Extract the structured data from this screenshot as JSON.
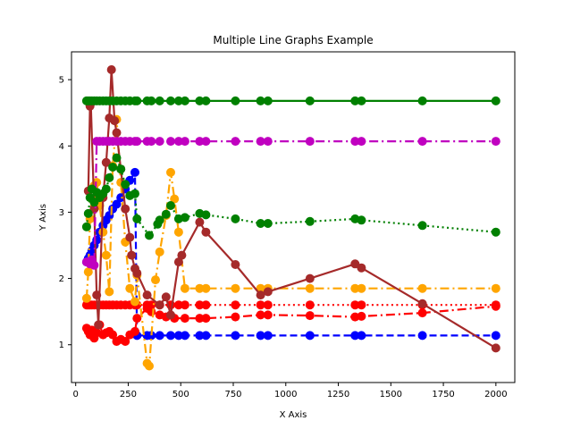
{
  "chart_data": {
    "type": "line",
    "title": "Multiple Line Graphs Example",
    "xlabel": "X Axis",
    "ylabel": "Y Axis",
    "xlim": [
      -20,
      2090
    ],
    "ylim": [
      0.43,
      5.42
    ],
    "x_ticks": [
      0,
      250,
      500,
      750,
      1000,
      1250,
      1500,
      1750,
      2000
    ],
    "x_tick_labels": [
      "0",
      "250",
      "500",
      "750",
      "1000",
      "1250",
      "1500",
      "1750",
      "2000"
    ],
    "y_ticks": [
      1,
      2,
      3,
      4,
      5
    ],
    "y_tick_labels": [
      "1",
      "2",
      "3",
      "4",
      "5"
    ],
    "grid": false,
    "legend": "none",
    "series": [
      {
        "color": "#0000ff",
        "line_style": "dashed",
        "points": [
          [
            52,
            2.25
          ],
          [
            60,
            2.3
          ],
          [
            68,
            2.35
          ],
          [
            77,
            2.42
          ],
          [
            88,
            2.5
          ],
          [
            100,
            2.58
          ],
          [
            114,
            2.7
          ],
          [
            130,
            2.8
          ],
          [
            145,
            2.88
          ],
          [
            160,
            2.95
          ],
          [
            176,
            3.05
          ],
          [
            195,
            3.12
          ],
          [
            215,
            3.22
          ],
          [
            236,
            3.35
          ],
          [
            258,
            3.48
          ],
          [
            282,
            3.6
          ],
          [
            292,
            1.14
          ],
          [
            340,
            1.14
          ],
          [
            360,
            1.14
          ],
          [
            400,
            1.14
          ],
          [
            452,
            1.14
          ],
          [
            490,
            1.14
          ],
          [
            520,
            1.14
          ],
          [
            590,
            1.14
          ],
          [
            620,
            1.14
          ],
          [
            760,
            1.14
          ],
          [
            880,
            1.14
          ],
          [
            915,
            1.14
          ],
          [
            1115,
            1.14
          ],
          [
            1330,
            1.14
          ],
          [
            1360,
            1.14
          ],
          [
            1650,
            1.14
          ],
          [
            2000,
            1.14
          ]
        ]
      },
      {
        "color": "#ff0000",
        "line_style": "dashdot",
        "points": [
          [
            52,
            1.25
          ],
          [
            60,
            1.2
          ],
          [
            68,
            1.15
          ],
          [
            77,
            1.22
          ],
          [
            88,
            1.1
          ],
          [
            100,
            1.18
          ],
          [
            114,
            1.3
          ],
          [
            130,
            1.15
          ],
          [
            145,
            1.18
          ],
          [
            160,
            1.2
          ],
          [
            176,
            1.15
          ],
          [
            195,
            1.05
          ],
          [
            215,
            1.08
          ],
          [
            236,
            1.05
          ],
          [
            258,
            1.15
          ],
          [
            282,
            1.2
          ],
          [
            292,
            1.4
          ],
          [
            340,
            1.55
          ],
          [
            360,
            1.5
          ],
          [
            400,
            1.45
          ],
          [
            430,
            1.42
          ],
          [
            470,
            1.4
          ],
          [
            520,
            1.4
          ],
          [
            590,
            1.4
          ],
          [
            620,
            1.4
          ],
          [
            760,
            1.42
          ],
          [
            880,
            1.45
          ],
          [
            915,
            1.45
          ],
          [
            1115,
            1.44
          ],
          [
            1330,
            1.42
          ],
          [
            1360,
            1.43
          ],
          [
            1650,
            1.48
          ],
          [
            2000,
            1.58
          ]
        ]
      },
      {
        "color": "#ff0000",
        "line_style": "dotted",
        "points": [
          [
            52,
            1.6
          ],
          [
            60,
            1.6
          ],
          [
            68,
            1.6
          ],
          [
            77,
            1.6
          ],
          [
            88,
            1.6
          ],
          [
            100,
            1.6
          ],
          [
            114,
            1.6
          ],
          [
            130,
            1.6
          ],
          [
            145,
            1.6
          ],
          [
            160,
            1.6
          ],
          [
            176,
            1.6
          ],
          [
            195,
            1.6
          ],
          [
            215,
            1.6
          ],
          [
            236,
            1.6
          ],
          [
            258,
            1.6
          ],
          [
            282,
            1.6
          ],
          [
            292,
            1.6
          ],
          [
            340,
            1.6
          ],
          [
            360,
            1.6
          ],
          [
            400,
            1.6
          ],
          [
            452,
            1.6
          ],
          [
            490,
            1.6
          ],
          [
            520,
            1.6
          ],
          [
            590,
            1.6
          ],
          [
            620,
            1.6
          ],
          [
            760,
            1.6
          ],
          [
            880,
            1.6
          ],
          [
            915,
            1.6
          ],
          [
            1115,
            1.6
          ],
          [
            1330,
            1.6
          ],
          [
            1360,
            1.6
          ],
          [
            1650,
            1.6
          ],
          [
            2000,
            1.6
          ]
        ]
      },
      {
        "color": "#ffa500",
        "line_style": "dashdot",
        "points": [
          [
            52,
            1.7
          ],
          [
            60,
            2.1
          ],
          [
            68,
            2.9
          ],
          [
            77,
            3.2
          ],
          [
            88,
            3.4
          ],
          [
            100,
            3.45
          ],
          [
            114,
            3.1
          ],
          [
            130,
            2.7
          ],
          [
            145,
            2.35
          ],
          [
            160,
            1.8
          ],
          [
            176,
            3.7
          ],
          [
            195,
            4.4
          ],
          [
            215,
            3.45
          ],
          [
            236,
            2.55
          ],
          [
            258,
            1.85
          ],
          [
            282,
            1.65
          ],
          [
            292,
            2.05
          ],
          [
            340,
            0.72
          ],
          [
            350,
            0.68
          ],
          [
            380,
            1.98
          ],
          [
            400,
            2.4
          ],
          [
            430,
            2.95
          ],
          [
            452,
            3.6
          ],
          [
            470,
            3.2
          ],
          [
            490,
            2.7
          ],
          [
            520,
            1.85
          ],
          [
            590,
            1.85
          ],
          [
            620,
            1.85
          ],
          [
            760,
            1.85
          ],
          [
            880,
            1.85
          ],
          [
            915,
            1.85
          ],
          [
            1115,
            1.85
          ],
          [
            1330,
            1.85
          ],
          [
            1360,
            1.85
          ],
          [
            1650,
            1.85
          ],
          [
            2000,
            1.85
          ]
        ]
      },
      {
        "color": "#a52a2a",
        "line_style": "solid",
        "points": [
          [
            60,
            3.32
          ],
          [
            68,
            4.6
          ],
          [
            72,
            4.65
          ],
          [
            88,
            3.05
          ],
          [
            100,
            1.75
          ],
          [
            108,
            1.3
          ],
          [
            130,
            3.22
          ],
          [
            145,
            3.75
          ],
          [
            160,
            4.42
          ],
          [
            170,
            5.15
          ],
          [
            185,
            4.38
          ],
          [
            195,
            4.2
          ],
          [
            215,
            3.65
          ],
          [
            236,
            3.05
          ],
          [
            258,
            2.62
          ],
          [
            266,
            2.35
          ],
          [
            282,
            2.15
          ],
          [
            292,
            2.08
          ],
          [
            340,
            1.75
          ],
          [
            400,
            1.6
          ],
          [
            430,
            1.72
          ],
          [
            452,
            1.45
          ],
          [
            490,
            2.25
          ],
          [
            505,
            2.35
          ],
          [
            590,
            2.85
          ],
          [
            620,
            2.7
          ],
          [
            760,
            2.21
          ],
          [
            880,
            1.75
          ],
          [
            915,
            1.8
          ],
          [
            1115,
            2.0
          ],
          [
            1330,
            2.22
          ],
          [
            1360,
            2.16
          ],
          [
            1650,
            1.62
          ],
          [
            2000,
            0.95
          ]
        ]
      },
      {
        "color": "#c000c0",
        "line_style": "dashdot",
        "points": [
          [
            52,
            2.25
          ],
          [
            60,
            2.25
          ],
          [
            68,
            2.22
          ],
          [
            77,
            2.28
          ],
          [
            88,
            2.2
          ],
          [
            100,
            4.07
          ],
          [
            114,
            4.07
          ],
          [
            130,
            4.07
          ],
          [
            145,
            4.07
          ],
          [
            160,
            4.07
          ],
          [
            176,
            4.07
          ],
          [
            195,
            4.07
          ],
          [
            215,
            4.07
          ],
          [
            236,
            4.07
          ],
          [
            258,
            4.07
          ],
          [
            282,
            4.07
          ],
          [
            292,
            4.07
          ],
          [
            340,
            4.07
          ],
          [
            360,
            4.07
          ],
          [
            400,
            4.07
          ],
          [
            452,
            4.07
          ],
          [
            490,
            4.07
          ],
          [
            520,
            4.07
          ],
          [
            590,
            4.07
          ],
          [
            620,
            4.07
          ],
          [
            760,
            4.07
          ],
          [
            880,
            4.07
          ],
          [
            915,
            4.07
          ],
          [
            1115,
            4.07
          ],
          [
            1330,
            4.07
          ],
          [
            1360,
            4.07
          ],
          [
            1650,
            4.07
          ],
          [
            2000,
            4.07
          ]
        ]
      },
      {
        "color": "#008000",
        "line_style": "solid",
        "points": [
          [
            52,
            4.68
          ],
          [
            60,
            4.68
          ],
          [
            68,
            4.68
          ],
          [
            77,
            4.68
          ],
          [
            88,
            4.68
          ],
          [
            100,
            4.68
          ],
          [
            114,
            4.68
          ],
          [
            130,
            4.68
          ],
          [
            145,
            4.68
          ],
          [
            160,
            4.68
          ],
          [
            176,
            4.68
          ],
          [
            195,
            4.68
          ],
          [
            215,
            4.68
          ],
          [
            236,
            4.68
          ],
          [
            258,
            4.68
          ],
          [
            282,
            4.68
          ],
          [
            292,
            4.68
          ],
          [
            340,
            4.68
          ],
          [
            360,
            4.68
          ],
          [
            400,
            4.68
          ],
          [
            452,
            4.68
          ],
          [
            490,
            4.68
          ],
          [
            520,
            4.68
          ],
          [
            590,
            4.68
          ],
          [
            620,
            4.68
          ],
          [
            760,
            4.68
          ],
          [
            880,
            4.68
          ],
          [
            915,
            4.68
          ],
          [
            1115,
            4.68
          ],
          [
            1330,
            4.68
          ],
          [
            1360,
            4.68
          ],
          [
            1650,
            4.68
          ],
          [
            2000,
            4.68
          ]
        ]
      },
      {
        "color": "#008000",
        "line_style": "dotted",
        "points": [
          [
            52,
            2.78
          ],
          [
            60,
            2.98
          ],
          [
            68,
            3.22
          ],
          [
            77,
            3.35
          ],
          [
            88,
            3.15
          ],
          [
            100,
            3.3
          ],
          [
            114,
            3.22
          ],
          [
            130,
            3.28
          ],
          [
            145,
            3.35
          ],
          [
            160,
            3.52
          ],
          [
            176,
            3.68
          ],
          [
            195,
            3.82
          ],
          [
            215,
            3.65
          ],
          [
            236,
            3.42
          ],
          [
            258,
            3.25
          ],
          [
            282,
            3.28
          ],
          [
            292,
            2.9
          ],
          [
            350,
            2.65
          ],
          [
            390,
            2.82
          ],
          [
            400,
            2.88
          ],
          [
            430,
            2.97
          ],
          [
            452,
            3.1
          ],
          [
            490,
            2.9
          ],
          [
            520,
            2.92
          ],
          [
            590,
            2.98
          ],
          [
            620,
            2.96
          ],
          [
            760,
            2.9
          ],
          [
            880,
            2.83
          ],
          [
            915,
            2.83
          ],
          [
            1115,
            2.86
          ],
          [
            1330,
            2.9
          ],
          [
            1360,
            2.88
          ],
          [
            1650,
            2.8
          ],
          [
            2000,
            2.7
          ]
        ]
      }
    ]
  }
}
